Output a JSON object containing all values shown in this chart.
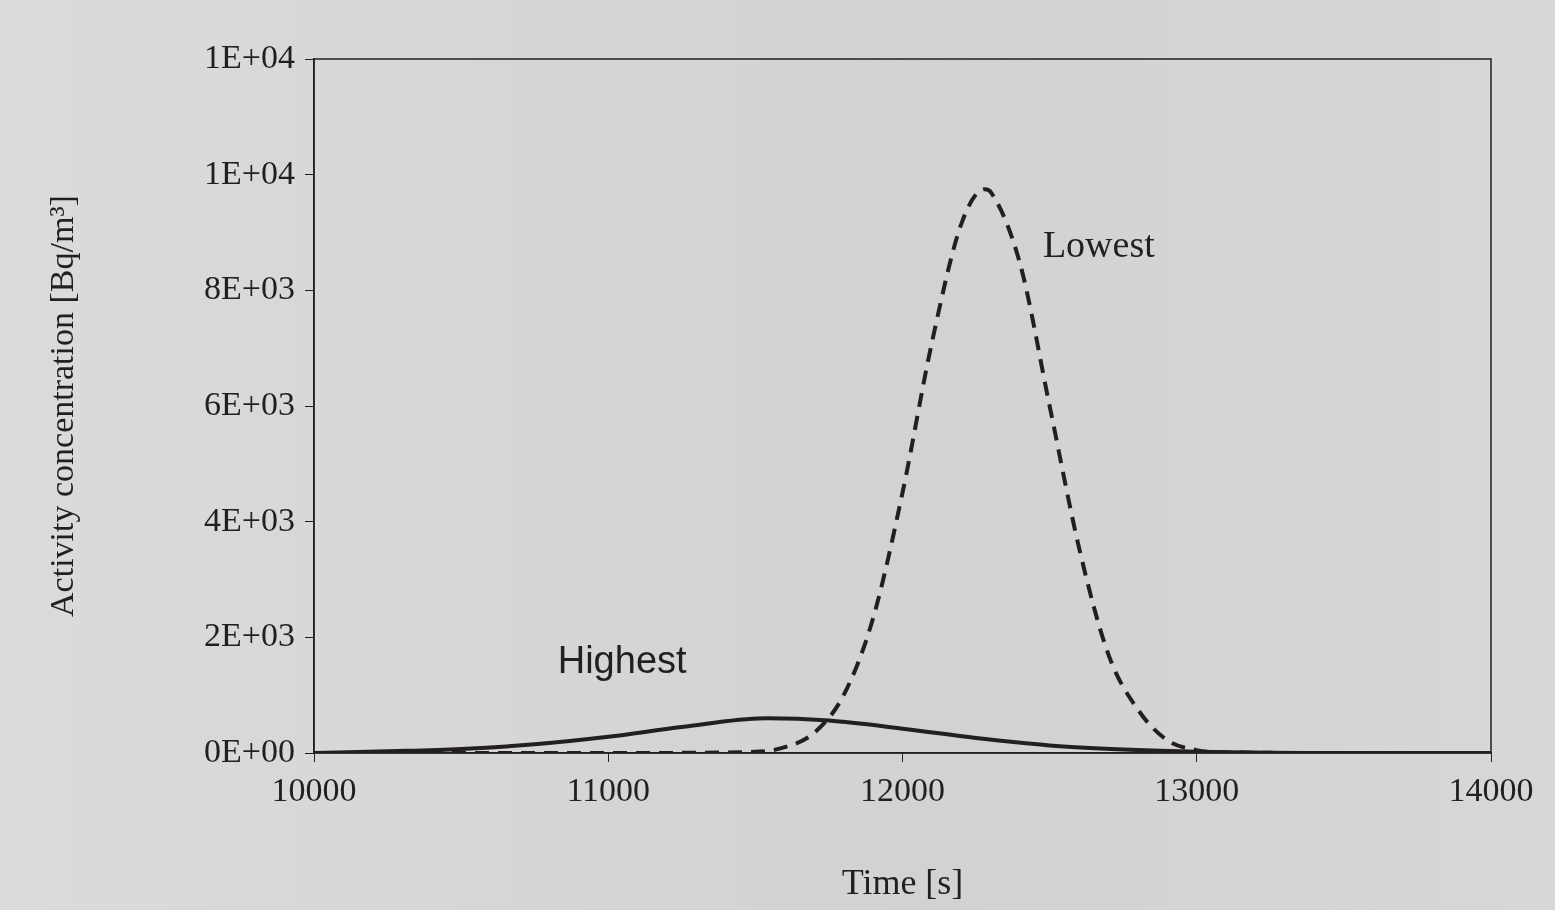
{
  "chart_data": {
    "type": "line",
    "xlabel": "Time [s]",
    "ylabel": "Activity concentration [Bq/m³]",
    "xlim": [
      10000,
      14000
    ],
    "xticks": [
      10000,
      11000,
      12000,
      13000,
      14000
    ],
    "ylim": [
      0,
      12000
    ],
    "yticks": [
      {
        "value": 0,
        "label": "0E+00"
      },
      {
        "value": 2000,
        "label": "2E+03"
      },
      {
        "value": 4000,
        "label": "4E+03"
      },
      {
        "value": 6000,
        "label": "6E+03"
      },
      {
        "value": 8000,
        "label": "8E+03"
      },
      {
        "value": 10000,
        "label": "1E+04"
      },
      {
        "value": 12000,
        "label": "1E+04"
      }
    ],
    "grid": false,
    "legend": false,
    "marker": "none",
    "series": [
      {
        "name": "Highest",
        "color": "#231f20",
        "line_style": "solid",
        "x": [
          10000,
          10250,
          10500,
          10750,
          11000,
          11250,
          11540,
          11750,
          12000,
          12250,
          12500,
          12750,
          13000,
          13500,
          14000
        ],
        "values": [
          0,
          30,
          70,
          150,
          280,
          450,
          600,
          560,
          420,
          260,
          130,
          60,
          20,
          0,
          0
        ]
      },
      {
        "name": "Lowest",
        "color": "#231f20",
        "line_style": "dashed",
        "x": [
          10000,
          11000,
          11500,
          11600,
          11700,
          11800,
          11900,
          12000,
          12100,
          12200,
          12280,
          12300,
          12400,
          12500,
          12600,
          12700,
          12800,
          12900,
          13000,
          13100,
          13500,
          14000
        ],
        "values": [
          0,
          0,
          20,
          100,
          350,
          1000,
          2330,
          4500,
          7100,
          9150,
          9750,
          9700,
          8450,
          6000,
          3550,
          1700,
          750,
          220,
          50,
          10,
          0,
          0
        ]
      }
    ]
  }
}
